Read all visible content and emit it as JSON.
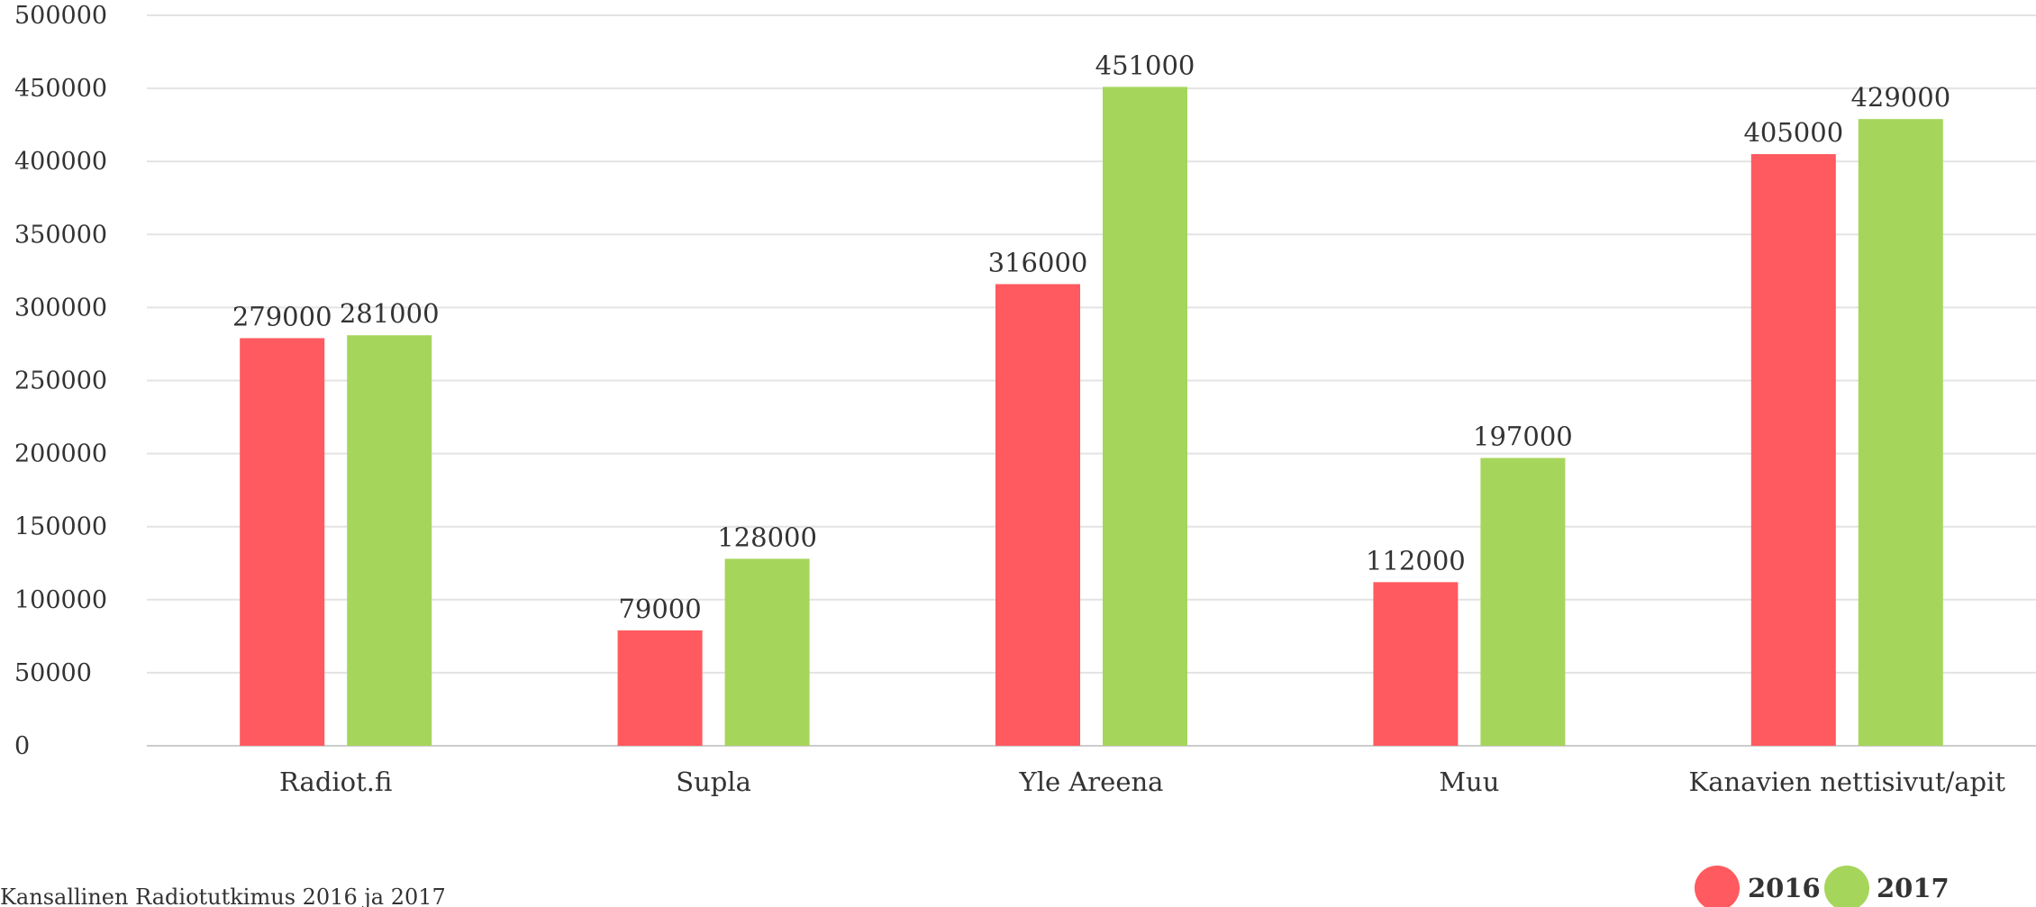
{
  "chart_data": {
    "type": "bar",
    "categories": [
      "Radiot.fi",
      "Supla",
      "Yle Areena",
      "Muu",
      "Kanavien nettisivut/apit"
    ],
    "series": [
      {
        "name": "2016",
        "color": "#ff5a5f",
        "values": [
          279000,
          79000,
          316000,
          112000,
          405000
        ]
      },
      {
        "name": "2017",
        "color": "#a6d55c",
        "values": [
          281000,
          128000,
          451000,
          197000,
          429000
        ]
      }
    ],
    "yticks": [
      "0",
      "50000",
      "100000",
      "150000",
      "200000",
      "250000",
      "300000",
      "350000",
      "400000",
      "450000",
      "500000"
    ],
    "ylim": [
      0,
      500000
    ],
    "grid": true,
    "legend_position": "bottom-right"
  },
  "source_text": "Kansallinen Radiotutkimus 2016 ja 2017"
}
